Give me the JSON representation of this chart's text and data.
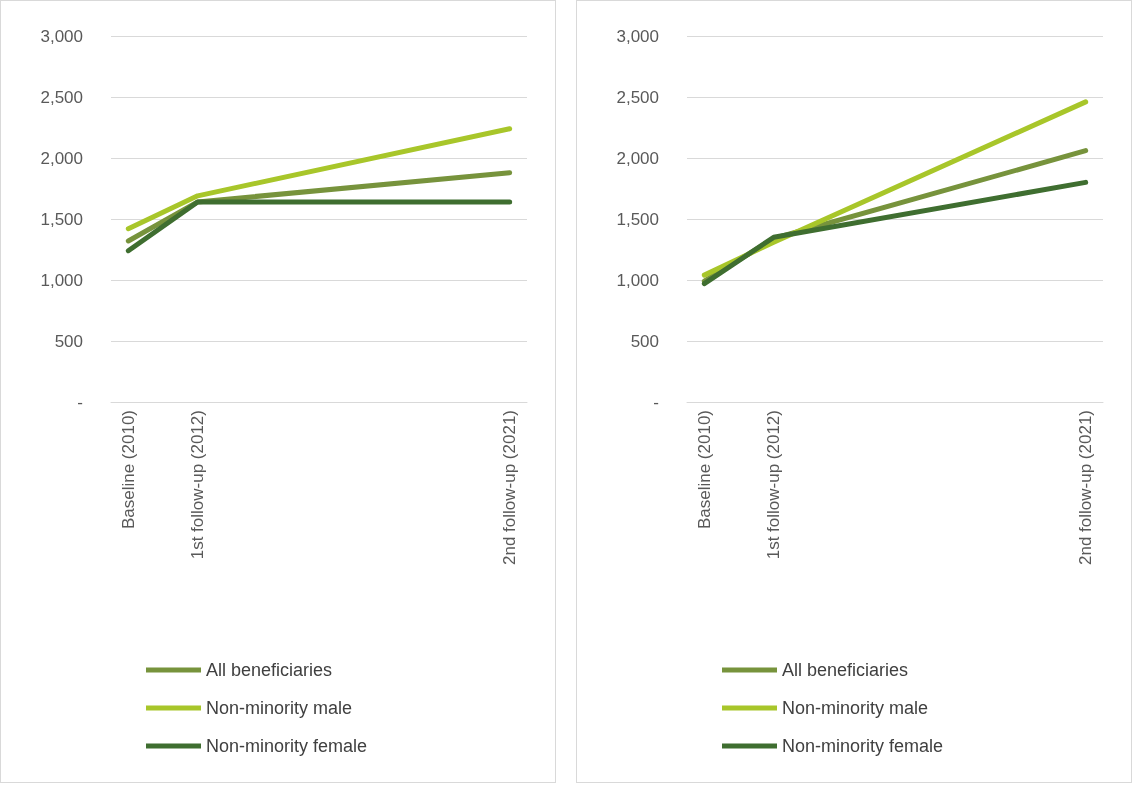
{
  "chart_data": [
    {
      "type": "line",
      "categories": [
        "Baseline (2010)",
        null,
        "1st follow-up (2012)",
        null,
        null,
        null,
        null,
        null,
        null,
        null,
        null,
        "2nd follow-up (2021)"
      ],
      "ylim": [
        0,
        3000
      ],
      "yticks": [
        {
          "value": 0,
          "label": "-"
        },
        {
          "value": 500,
          "label": "500"
        },
        {
          "value": 1000,
          "label": "1,000"
        },
        {
          "value": 1500,
          "label": "1,500"
        },
        {
          "value": 2000,
          "label": "2,000"
        },
        {
          "value": 2500,
          "label": "2,500"
        },
        {
          "value": 3000,
          "label": "3,000"
        }
      ],
      "grid": "y",
      "legend": "bottom left",
      "marker": "none",
      "line_style": "solid",
      "series": [
        {
          "name": "All beneficiaries",
          "color": "#77933c",
          "values": [
            1320,
            null,
            1640,
            null,
            null,
            null,
            null,
            null,
            null,
            null,
            null,
            1880
          ]
        },
        {
          "name": "Non-minority male",
          "color": "#a8c62a",
          "values": [
            1420,
            null,
            1690,
            null,
            null,
            null,
            null,
            null,
            null,
            null,
            null,
            2240
          ]
        },
        {
          "name": "Non-minority female",
          "color": "#3f6e30",
          "values": [
            1240,
            null,
            1640,
            null,
            null,
            null,
            null,
            null,
            null,
            null,
            null,
            1640
          ]
        }
      ]
    },
    {
      "type": "line",
      "categories": [
        "Baseline (2010)",
        null,
        "1st follow-up (2012)",
        null,
        null,
        null,
        null,
        null,
        null,
        null,
        null,
        "2nd follow-up (2021)"
      ],
      "ylim": [
        0,
        3000
      ],
      "yticks": [
        {
          "value": 0,
          "label": "-"
        },
        {
          "value": 500,
          "label": "500"
        },
        {
          "value": 1000,
          "label": "1,000"
        },
        {
          "value": 1500,
          "label": "1,500"
        },
        {
          "value": 2000,
          "label": "2,000"
        },
        {
          "value": 2500,
          "label": "2,500"
        },
        {
          "value": 3000,
          "label": "3,000"
        }
      ],
      "grid": "y",
      "legend": "bottom left",
      "marker": "none",
      "line_style": "solid",
      "series": [
        {
          "name": "All beneficiaries",
          "color": "#77933c",
          "values": [
            990,
            null,
            1340,
            null,
            null,
            null,
            null,
            null,
            null,
            null,
            null,
            2060
          ]
        },
        {
          "name": "Non-minority male",
          "color": "#a8c62a",
          "values": [
            1040,
            null,
            1310,
            null,
            null,
            null,
            null,
            null,
            null,
            null,
            null,
            2460
          ]
        },
        {
          "name": "Non-minority female",
          "color": "#3f6e30",
          "values": [
            970,
            null,
            1350,
            null,
            null,
            null,
            null,
            null,
            null,
            null,
            null,
            1800
          ]
        }
      ]
    }
  ]
}
